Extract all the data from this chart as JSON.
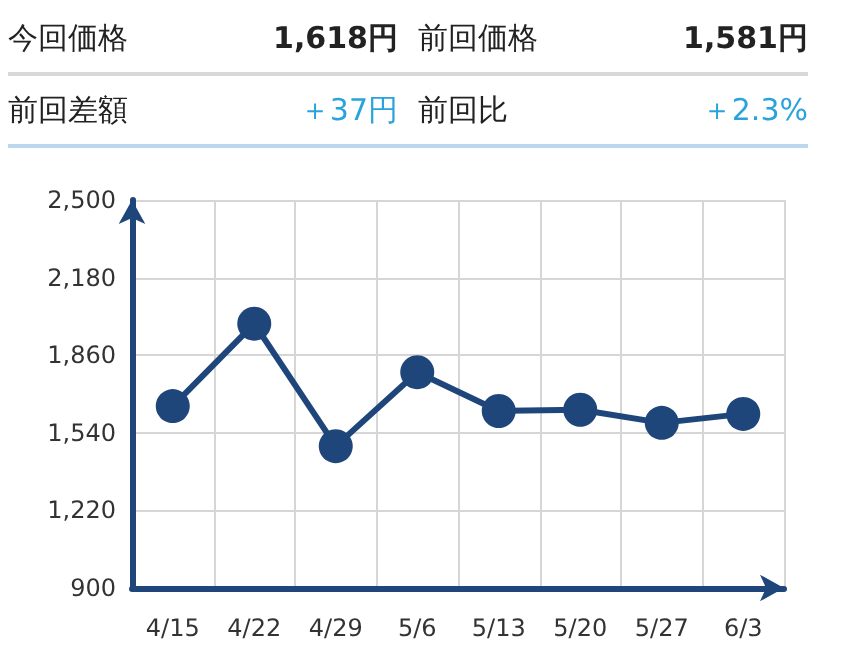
{
  "chart_data": [
    {
      "type": "other",
      "annotations": [
        "今回価格",
        "1,618円",
        "前回価格",
        "1,581円",
        "前回差額",
        "＋37円",
        "前回比",
        "＋2.3%"
      ]
    },
    {
      "type": "line",
      "categories": [
        "4/15",
        "4/22",
        "4/29",
        "5/6",
        "5/13",
        "5/20",
        "5/27",
        "6/3"
      ],
      "values": [
        1650,
        1990,
        1485,
        1790,
        1630,
        1635,
        1581,
        1618
      ],
      "color": "#1f467a",
      "ylim": [
        900,
        2500
      ],
      "yticks": [
        "900",
        {
          "value": 1220,
          "label": "1,220"
        },
        {
          "value": 1540,
          "label": "1,540"
        },
        {
          "value": 1860,
          "label": "1,860"
        },
        {
          "value": 2180,
          "label": "2,180"
        },
        {
          "value": 2500,
          "label": "2,500"
        }
      ],
      "grid": true,
      "marker": "circle",
      "line_style": "solid"
    }
  ]
}
